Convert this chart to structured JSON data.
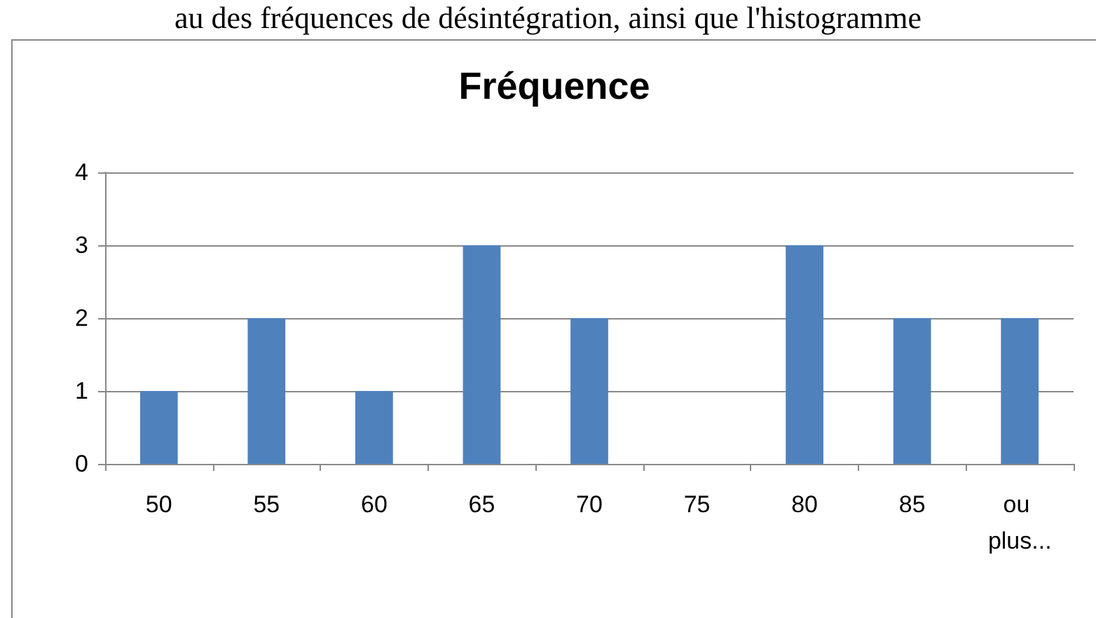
{
  "chart_data": {
    "type": "bar",
    "title": "Fréquence",
    "categories": [
      "50",
      "55",
      "60",
      "65",
      "70",
      "75",
      "80",
      "85",
      "ou plus..."
    ],
    "values": [
      1,
      2,
      1,
      3,
      2,
      0,
      3,
      2,
      2
    ],
    "color": "#4f81bd",
    "ylim": [
      0,
      4
    ],
    "yticks": [
      0,
      1,
      2,
      3,
      4
    ],
    "grid": "y",
    "annotations": [
      "au des fréquences de désintégration, ainsi que l'histogramme"
    ]
  }
}
